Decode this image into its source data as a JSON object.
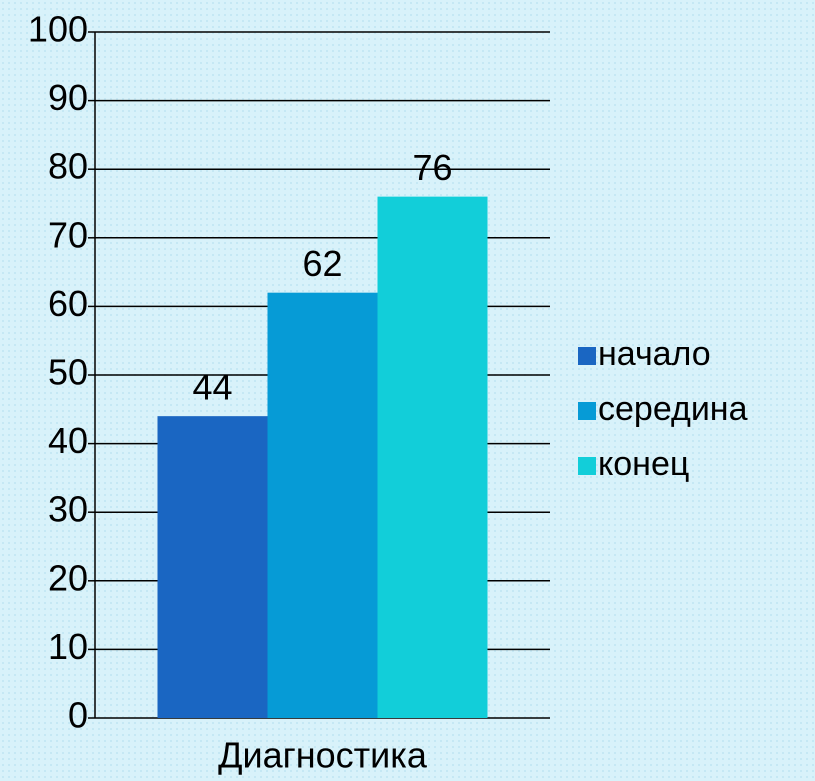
{
  "chart_data": {
    "type": "bar",
    "categories": [
      "Диагностика"
    ],
    "series": [
      {
        "name": "начало",
        "color": "#1a66c2",
        "values": [
          44
        ]
      },
      {
        "name": "середина",
        "color": "#069bd6",
        "values": [
          62
        ]
      },
      {
        "name": "конец",
        "color": "#12ced9",
        "values": [
          76
        ]
      }
    ],
    "ylim": [
      0,
      100
    ],
    "yticks": [
      0,
      10,
      20,
      30,
      40,
      50,
      60,
      70,
      80,
      90,
      100
    ],
    "grid": true,
    "legend": "right"
  }
}
